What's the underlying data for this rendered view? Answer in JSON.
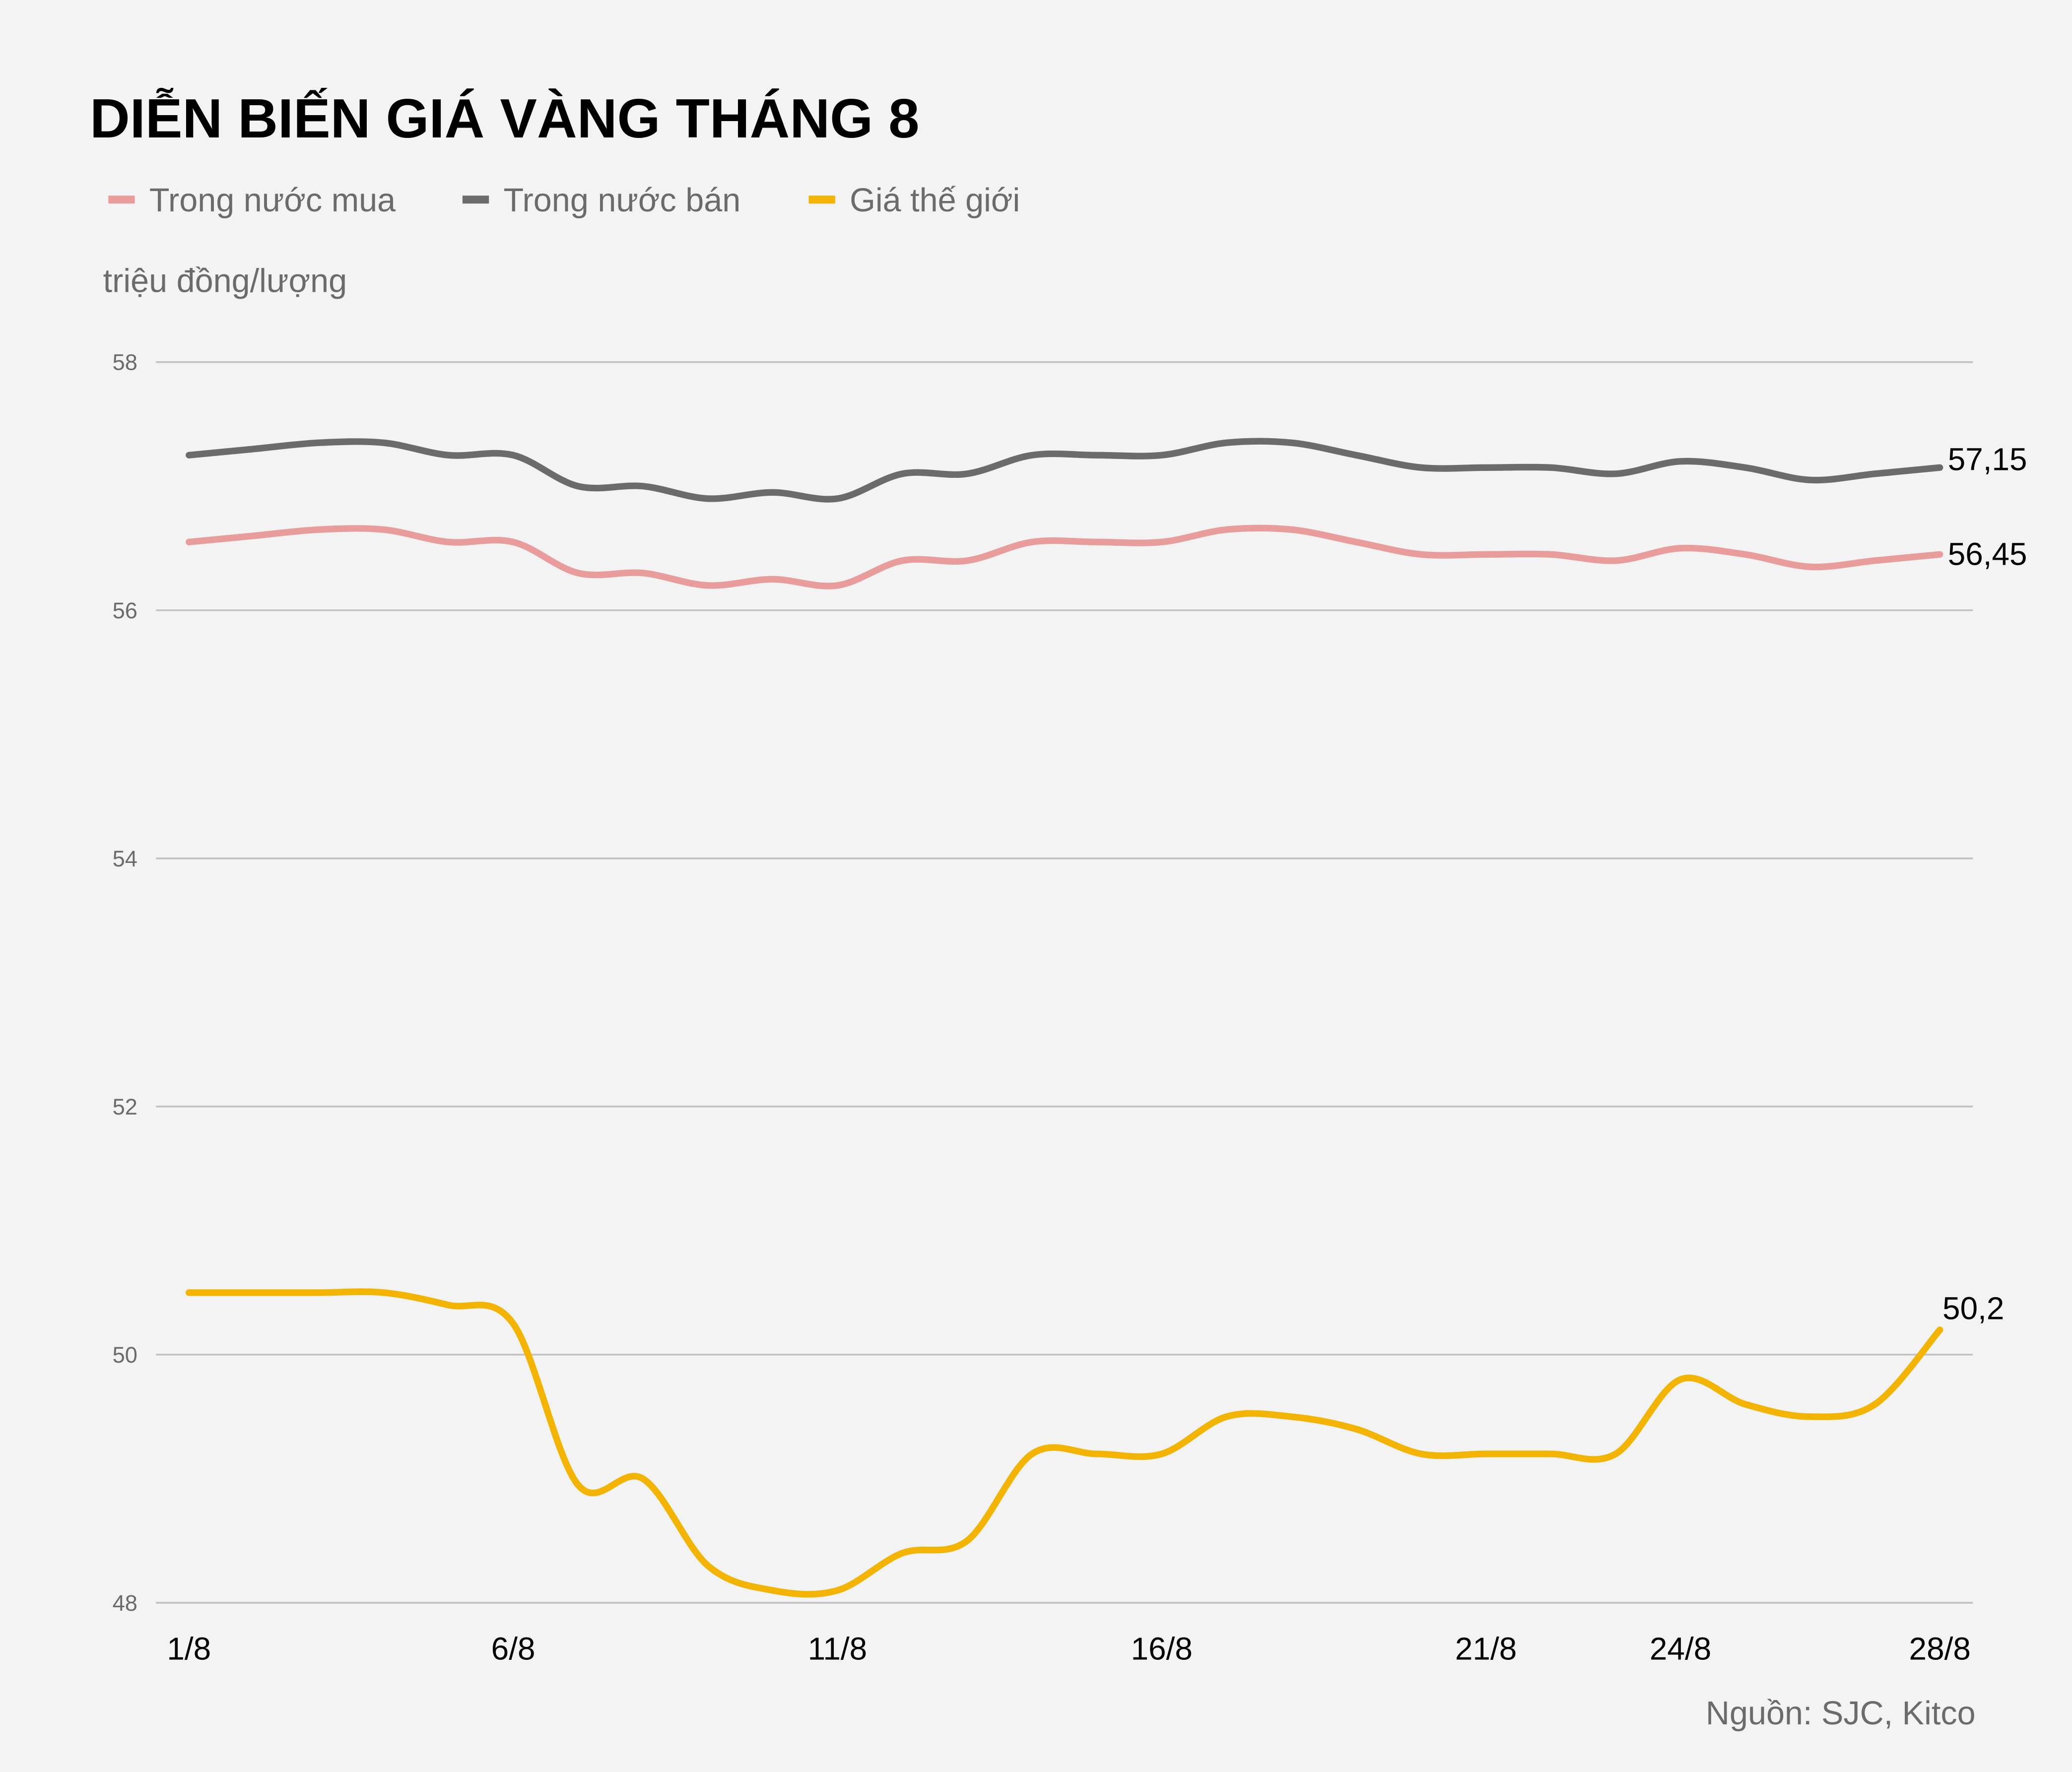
{
  "chart_data": {
    "type": "line",
    "title": "DIỄN BIẾN GIÁ VÀNG THÁNG 8",
    "ylabel": "triệu đồng/lượng",
    "source": "Nguồn: SJC, Kitco",
    "ylim": [
      48,
      58
    ],
    "yticks": [
      "48",
      "50",
      "52",
      "54",
      "56",
      "58"
    ],
    "ytick_values": [
      48,
      50,
      52,
      54,
      56,
      58
    ],
    "xticks": [
      "1/8",
      "6/8",
      "11/8",
      "16/8",
      "21/8",
      "24/8",
      "28/8"
    ],
    "xtick_days": [
      1,
      6,
      11,
      16,
      21,
      24,
      28
    ],
    "grid": "horizontal",
    "legend": "top-left",
    "x": [
      1,
      2,
      3,
      4,
      5,
      6,
      7,
      8,
      9,
      10,
      11,
      12,
      13,
      14,
      15,
      16,
      17,
      18,
      19,
      20,
      21,
      22,
      23,
      24,
      25,
      26,
      27,
      28
    ],
    "series": [
      {
        "name": "Trong nước mua",
        "color": "#e89c9c",
        "values": [
          56.55,
          56.6,
          56.65,
          56.65,
          56.55,
          56.55,
          56.3,
          56.3,
          56.2,
          56.25,
          56.2,
          56.4,
          56.4,
          56.55,
          56.55,
          56.55,
          56.65,
          56.65,
          56.55,
          56.45,
          56.45,
          56.45,
          56.4,
          56.5,
          56.45,
          56.35,
          56.4,
          56.45
        ],
        "end_label": "56,45"
      },
      {
        "name": "Trong nước bán",
        "color": "#6b6b6b",
        "values": [
          57.25,
          57.3,
          57.35,
          57.35,
          57.25,
          57.25,
          57.0,
          57.0,
          56.9,
          56.95,
          56.9,
          57.1,
          57.1,
          57.25,
          57.25,
          57.25,
          57.35,
          57.35,
          57.25,
          57.15,
          57.15,
          57.15,
          57.1,
          57.2,
          57.15,
          57.05,
          57.1,
          57.15
        ],
        "end_label": "57,15"
      },
      {
        "name": "Giá thế giới",
        "color": "#f2b400",
        "values": [
          50.5,
          50.5,
          50.5,
          50.5,
          50.4,
          50.25,
          48.95,
          49.0,
          48.3,
          48.1,
          48.1,
          48.4,
          48.5,
          49.2,
          49.2,
          49.2,
          49.5,
          49.5,
          49.4,
          49.2,
          49.2,
          49.2,
          49.2,
          49.8,
          49.6,
          49.5,
          49.6,
          50.2
        ],
        "end_label": "50,2"
      }
    ]
  }
}
